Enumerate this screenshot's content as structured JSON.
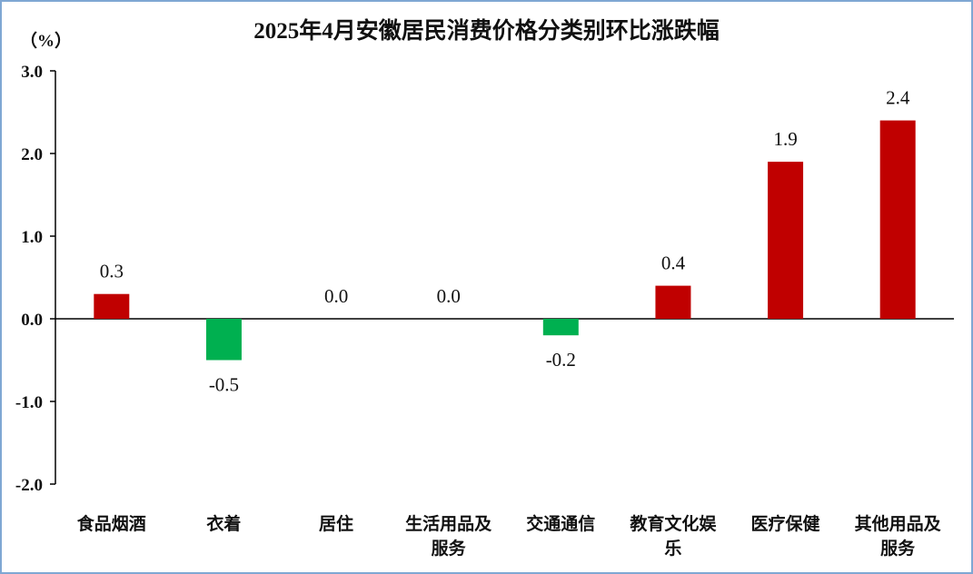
{
  "chart_data": {
    "type": "bar",
    "title": "2025年4月安徽居民消费价格分类别环比涨跌幅",
    "unit": "（%）",
    "xlabel": "",
    "ylabel": "",
    "ylim": [
      -2.0,
      3.0
    ],
    "yticks": [
      "3.0",
      "2.0",
      "1.0",
      "0.0",
      "-1.0",
      "-2.0"
    ],
    "ytick_values": [
      3,
      2,
      1,
      0,
      -1,
      -2
    ],
    "categories": [
      [
        "食品烟酒"
      ],
      [
        "衣着"
      ],
      [
        "居住"
      ],
      [
        "生活用品及",
        "服务"
      ],
      [
        "交通通信"
      ],
      [
        "教育文化娱",
        "乐"
      ],
      [
        "医疗保健"
      ],
      [
        "其他用品及",
        "服务"
      ]
    ],
    "values": [
      0.3,
      -0.5,
      0.0,
      0.0,
      -0.2,
      0.4,
      1.9,
      2.4
    ],
    "value_labels": [
      "0.3",
      "-0.5",
      "0.0",
      "0.0",
      "-0.2",
      "0.4",
      "1.9",
      "2.4"
    ],
    "grid": false,
    "legend": "none",
    "colors": {
      "positive": "#c00000",
      "negative": "#00b050",
      "axis": "#000000"
    }
  }
}
